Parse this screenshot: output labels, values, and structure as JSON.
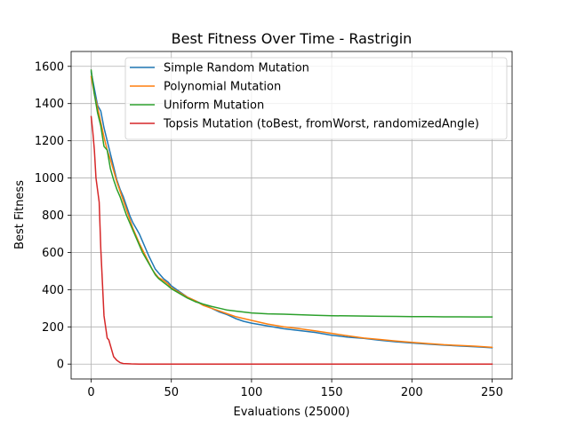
{
  "chart_data": {
    "type": "line",
    "title": "Best Fitness Over Time - Rastrigin",
    "xlabel": "Evaluations (25000)",
    "ylabel": "Best Fitness",
    "xlim": [
      -12.5,
      262.5
    ],
    "ylim": [
      -80,
      1680
    ],
    "xticks": [
      0,
      50,
      100,
      150,
      200,
      250
    ],
    "yticks": [
      0,
      200,
      400,
      600,
      800,
      1000,
      1200,
      1400,
      1600
    ],
    "grid": true,
    "legend_position": "top-right",
    "series": [
      {
        "name": "Simple Random Mutation",
        "color": "#1f77b4",
        "points": [
          [
            0,
            1570
          ],
          [
            2,
            1480
          ],
          [
            4,
            1390
          ],
          [
            6,
            1360
          ],
          [
            8,
            1270
          ],
          [
            10,
            1200
          ],
          [
            12,
            1130
          ],
          [
            14,
            1060
          ],
          [
            16,
            990
          ],
          [
            18,
            940
          ],
          [
            20,
            900
          ],
          [
            22,
            850
          ],
          [
            24,
            800
          ],
          [
            26,
            760
          ],
          [
            28,
            730
          ],
          [
            30,
            700
          ],
          [
            32,
            660
          ],
          [
            34,
            620
          ],
          [
            36,
            580
          ],
          [
            38,
            545
          ],
          [
            40,
            510
          ],
          [
            42,
            490
          ],
          [
            45,
            460
          ],
          [
            48,
            440
          ],
          [
            50,
            420
          ],
          [
            55,
            390
          ],
          [
            60,
            360
          ],
          [
            65,
            340
          ],
          [
            70,
            320
          ],
          [
            75,
            300
          ],
          [
            80,
            280
          ],
          [
            85,
            265
          ],
          [
            90,
            245
          ],
          [
            95,
            230
          ],
          [
            100,
            220
          ],
          [
            110,
            205
          ],
          [
            120,
            190
          ],
          [
            130,
            180
          ],
          [
            140,
            170
          ],
          [
            150,
            155
          ],
          [
            160,
            145
          ],
          [
            170,
            138
          ],
          [
            180,
            128
          ],
          [
            190,
            120
          ],
          [
            200,
            113
          ],
          [
            210,
            107
          ],
          [
            220,
            102
          ],
          [
            230,
            97
          ],
          [
            240,
            93
          ],
          [
            250,
            88
          ]
        ]
      },
      {
        "name": "Polynomial Mutation",
        "color": "#ff7f0e",
        "points": [
          [
            0,
            1545
          ],
          [
            2,
            1450
          ],
          [
            4,
            1380
          ],
          [
            6,
            1300
          ],
          [
            8,
            1220
          ],
          [
            10,
            1150
          ],
          [
            12,
            1100
          ],
          [
            14,
            1040
          ],
          [
            16,
            980
          ],
          [
            18,
            930
          ],
          [
            20,
            880
          ],
          [
            22,
            830
          ],
          [
            24,
            780
          ],
          [
            26,
            730
          ],
          [
            28,
            690
          ],
          [
            30,
            650
          ],
          [
            32,
            615
          ],
          [
            34,
            580
          ],
          [
            36,
            545
          ],
          [
            38,
            510
          ],
          [
            40,
            485
          ],
          [
            42,
            465
          ],
          [
            45,
            450
          ],
          [
            48,
            430
          ],
          [
            50,
            410
          ],
          [
            55,
            385
          ],
          [
            60,
            360
          ],
          [
            65,
            340
          ],
          [
            70,
            315
          ],
          [
            75,
            300
          ],
          [
            80,
            285
          ],
          [
            85,
            270
          ],
          [
            90,
            255
          ],
          [
            95,
            245
          ],
          [
            100,
            235
          ],
          [
            110,
            215
          ],
          [
            120,
            200
          ],
          [
            130,
            190
          ],
          [
            140,
            178
          ],
          [
            150,
            165
          ],
          [
            160,
            152
          ],
          [
            170,
            140
          ],
          [
            180,
            132
          ],
          [
            190,
            124
          ],
          [
            200,
            117
          ],
          [
            210,
            110
          ],
          [
            220,
            104
          ],
          [
            230,
            100
          ],
          [
            240,
            96
          ],
          [
            250,
            90
          ]
        ]
      },
      {
        "name": "Uniform Mutation",
        "color": "#2ca02c",
        "points": [
          [
            0,
            1580
          ],
          [
            2,
            1450
          ],
          [
            4,
            1350
          ],
          [
            6,
            1280
          ],
          [
            8,
            1170
          ],
          [
            10,
            1150
          ],
          [
            12,
            1050
          ],
          [
            14,
            990
          ],
          [
            16,
            940
          ],
          [
            18,
            900
          ],
          [
            20,
            850
          ],
          [
            22,
            800
          ],
          [
            24,
            760
          ],
          [
            26,
            720
          ],
          [
            28,
            680
          ],
          [
            30,
            640
          ],
          [
            32,
            600
          ],
          [
            34,
            570
          ],
          [
            36,
            540
          ],
          [
            38,
            510
          ],
          [
            40,
            480
          ],
          [
            42,
            460
          ],
          [
            45,
            440
          ],
          [
            48,
            420
          ],
          [
            50,
            405
          ],
          [
            55,
            380
          ],
          [
            60,
            355
          ],
          [
            65,
            335
          ],
          [
            70,
            322
          ],
          [
            75,
            310
          ],
          [
            80,
            300
          ],
          [
            85,
            290
          ],
          [
            90,
            285
          ],
          [
            100,
            275
          ],
          [
            110,
            270
          ],
          [
            120,
            268
          ],
          [
            130,
            265
          ],
          [
            140,
            262
          ],
          [
            150,
            260
          ],
          [
            160,
            259
          ],
          [
            170,
            258
          ],
          [
            180,
            257
          ],
          [
            190,
            256
          ],
          [
            200,
            255
          ],
          [
            210,
            255
          ],
          [
            220,
            254
          ],
          [
            230,
            254
          ],
          [
            240,
            253
          ],
          [
            250,
            253
          ]
        ]
      },
      {
        "name": "Topsis Mutation (toBest, fromWorst, randomizedAngle)",
        "color": "#d62728",
        "points": [
          [
            0,
            1330
          ],
          [
            1,
            1250
          ],
          [
            2,
            1150
          ],
          [
            3,
            1000
          ],
          [
            5,
            870
          ],
          [
            6,
            620
          ],
          [
            7,
            440
          ],
          [
            8,
            260
          ],
          [
            9,
            200
          ],
          [
            10,
            140
          ],
          [
            11,
            130
          ],
          [
            12,
            100
          ],
          [
            13,
            70
          ],
          [
            14,
            40
          ],
          [
            16,
            20
          ],
          [
            18,
            8
          ],
          [
            20,
            3
          ],
          [
            25,
            1
          ],
          [
            30,
            0
          ],
          [
            50,
            0
          ],
          [
            100,
            0
          ],
          [
            150,
            0
          ],
          [
            200,
            0
          ],
          [
            250,
            0
          ]
        ]
      }
    ]
  }
}
